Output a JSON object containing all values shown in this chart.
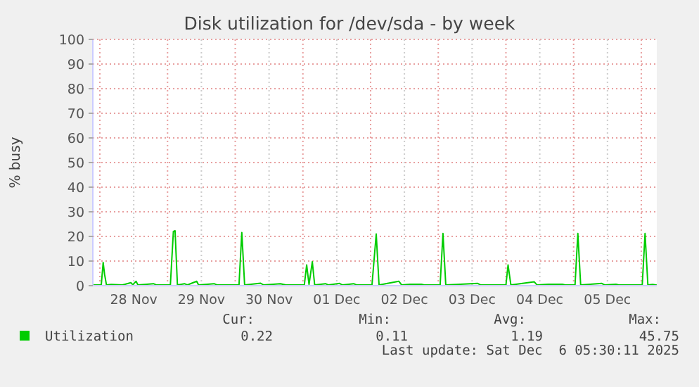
{
  "chart_data": {
    "type": "line",
    "title": "Disk utilization for /dev/sda - by week",
    "ylabel": "% busy",
    "xlim": [
      "2025-11-27T21:30",
      "2025-12-06T05:30"
    ],
    "xticks": [
      {
        "value": "2025-11-28T00:00",
        "label": null
      },
      {
        "value": "2025-11-28T12:00",
        "label": "28 Nov"
      },
      {
        "value": "2025-11-29T00:00",
        "label": null
      },
      {
        "value": "2025-11-29T12:00",
        "label": "29 Nov"
      },
      {
        "value": "2025-11-30T00:00",
        "label": null
      },
      {
        "value": "2025-11-30T12:00",
        "label": "30 Nov"
      },
      {
        "value": "2025-12-01T00:00",
        "label": null
      },
      {
        "value": "2025-12-01T12:00",
        "label": "01 Dec"
      },
      {
        "value": "2025-12-02T00:00",
        "label": null
      },
      {
        "value": "2025-12-02T12:00",
        "label": "02 Dec"
      },
      {
        "value": "2025-12-03T00:00",
        "label": null
      },
      {
        "value": "2025-12-03T12:00",
        "label": "03 Dec"
      },
      {
        "value": "2025-12-04T00:00",
        "label": null
      },
      {
        "value": "2025-12-04T12:00",
        "label": "04 Dec"
      },
      {
        "value": "2025-12-05T00:00",
        "label": null
      },
      {
        "value": "2025-12-05T12:00",
        "label": "05 Dec"
      },
      {
        "value": "2025-12-06T00:00",
        "label": null
      }
    ],
    "ylim": [
      0,
      100
    ],
    "yticks": [
      0,
      10,
      20,
      30,
      40,
      50,
      60,
      70,
      80,
      90,
      100
    ],
    "grid": true,
    "legend": "bottom",
    "marker": "none",
    "line_style": "solid",
    "series": [
      {
        "name": "Utilization",
        "color": "#00cc00",
        "x": [
          "2025-11-27T21:30",
          "2025-11-28T00:00",
          "2025-11-28T00:30",
          "2025-11-28T01:10",
          "2025-11-28T01:40",
          "2025-11-28T02:20",
          "2025-11-28T04:00",
          "2025-11-28T08:00",
          "2025-11-28T11:00",
          "2025-11-28T11:40",
          "2025-11-28T12:50",
          "2025-11-28T13:30",
          "2025-11-28T19:00",
          "2025-11-28T20:00",
          "2025-11-29T01:00",
          "2025-11-29T02:04",
          "2025-11-29T02:40",
          "2025-11-29T03:30",
          "2025-11-29T06:00",
          "2025-11-29T07:00",
          "2025-11-29T10:20",
          "2025-11-29T11:00",
          "2025-11-29T16:30",
          "2025-11-29T17:30",
          "2025-11-30T01:20",
          "2025-11-30T02:20",
          "2025-11-30T03:20",
          "2025-11-30T09:00",
          "2025-11-30T10:00",
          "2025-11-30T16:00",
          "2025-11-30T18:00",
          "2025-12-01T00:30",
          "2025-12-01T01:20",
          "2025-12-01T02:10",
          "2025-12-01T03:20",
          "2025-12-01T04:10",
          "2025-12-01T08:00",
          "2025-12-01T09:00",
          "2025-12-01T13:00",
          "2025-12-01T14:00",
          "2025-12-01T18:00",
          "2025-12-01T19:00",
          "2025-12-02T00:30",
          "2025-12-02T02:00",
          "2025-12-02T03:00",
          "2025-12-02T10:00",
          "2025-12-02T11:00",
          "2025-12-02T14:00",
          "2025-12-02T18:00",
          "2025-12-02T19:00",
          "2025-12-03T00:40",
          "2025-12-03T01:40",
          "2025-12-03T02:40",
          "2025-12-03T14:00",
          "2025-12-03T15:00",
          "2025-12-04T00:00",
          "2025-12-04T00:45",
          "2025-12-04T01:45",
          "2025-12-04T10:00",
          "2025-12-04T11:00",
          "2025-12-04T15:00",
          "2025-12-04T20:00",
          "2025-12-04T21:00",
          "2025-12-05T00:30",
          "2025-12-05T01:30",
          "2025-12-05T02:30",
          "2025-12-05T10:00",
          "2025-12-05T11:00",
          "2025-12-05T15:00",
          "2025-12-05T16:00",
          "2025-12-06T00:20",
          "2025-12-06T01:20",
          "2025-12-06T02:20",
          "2025-12-06T04:00",
          "2025-12-06T05:30"
        ],
        "values": [
          0.3,
          0.3,
          0.4,
          9.4,
          4.6,
          0.3,
          0.5,
          0.3,
          1.2,
          0.4,
          1.8,
          0.3,
          0.8,
          0.3,
          0.3,
          22.0,
          22.3,
          0.3,
          0.8,
          0.3,
          1.8,
          0.3,
          0.8,
          0.3,
          0.3,
          21.6,
          0.3,
          1.0,
          0.3,
          0.8,
          0.3,
          0.3,
          8.4,
          0.5,
          9.7,
          0.3,
          0.8,
          0.3,
          0.9,
          0.3,
          0.8,
          0.3,
          0.3,
          21.0,
          0.3,
          1.8,
          0.3,
          0.6,
          0.6,
          0.3,
          0.3,
          21.2,
          0.3,
          0.9,
          0.3,
          0.3,
          8.4,
          0.3,
          1.6,
          0.3,
          0.6,
          0.6,
          0.3,
          0.3,
          21.2,
          0.3,
          0.9,
          0.3,
          0.6,
          0.3,
          0.3,
          21.2,
          0.3,
          0.5,
          0.2
        ]
      }
    ],
    "annotations": [
      "Cur:",
      "Min:",
      "Avg:",
      "Max:",
      "0.22",
      "0.11",
      "1.19",
      "45.75",
      "Last update: Sat Dec  6 05:30:11 2025"
    ]
  }
}
